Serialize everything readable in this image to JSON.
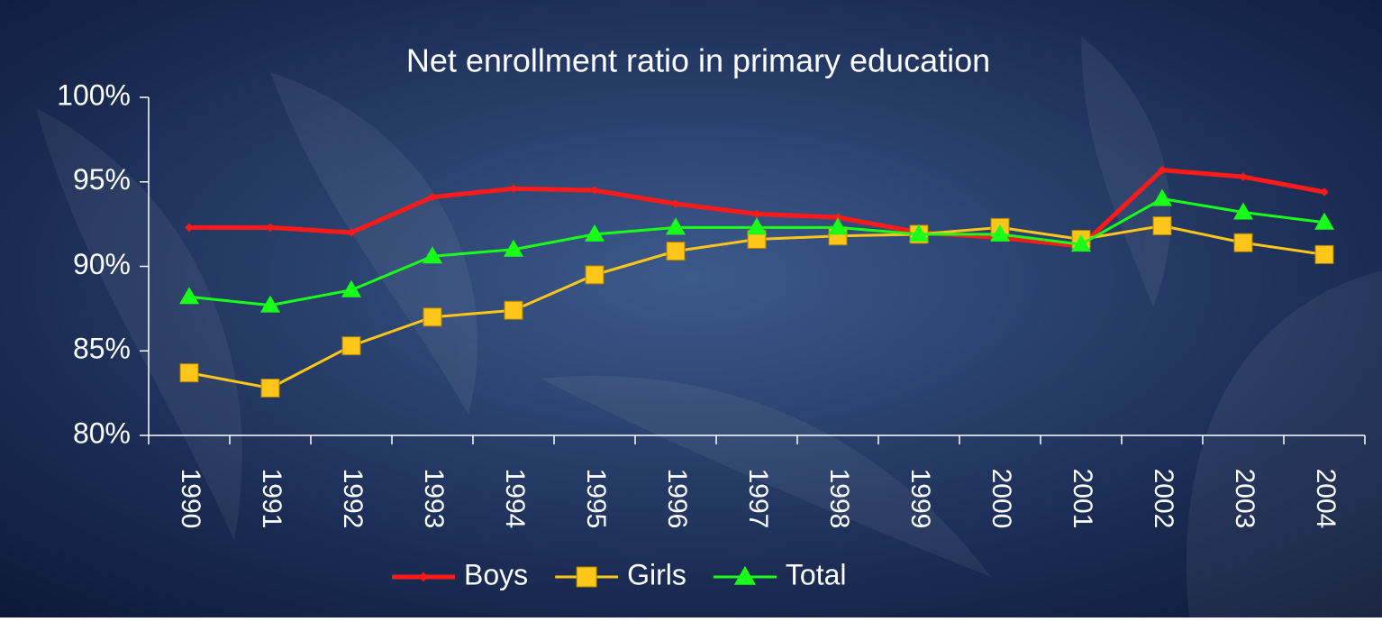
{
  "chart_data": {
    "type": "line",
    "title": "Net enrollment ratio in primary education",
    "categories": [
      "1990",
      "1991",
      "1992",
      "1993",
      "1994",
      "1995",
      "1996",
      "1997",
      "1998",
      "1999",
      "2000",
      "2001",
      "2002",
      "2003",
      "2004"
    ],
    "series": [
      {
        "name": "Boys",
        "color": "#ff1a1a",
        "marker": "diamond",
        "values": [
          92.3,
          92.3,
          92.0,
          94.1,
          94.6,
          94.5,
          93.7,
          93.1,
          92.9,
          92.0,
          91.7,
          91.2,
          95.7,
          95.3,
          94.4
        ]
      },
      {
        "name": "Girls",
        "color": "#ffc61a",
        "marker": "square",
        "values": [
          83.7,
          82.8,
          85.3,
          87.0,
          87.4,
          89.5,
          90.9,
          91.6,
          91.8,
          91.9,
          92.3,
          91.6,
          92.4,
          91.4,
          90.7
        ]
      },
      {
        "name": "Total",
        "color": "#1aff1a",
        "marker": "triangle",
        "values": [
          88.2,
          87.7,
          88.6,
          90.6,
          91.0,
          91.9,
          92.3,
          92.3,
          92.3,
          91.9,
          91.9,
          91.3,
          94.0,
          93.2,
          92.6
        ]
      }
    ],
    "ylim": [
      80,
      100
    ],
    "yticks": [
      {
        "value": 80,
        "label": "80%"
      },
      {
        "value": 85,
        "label": "85%"
      },
      {
        "value": 90,
        "label": "90%"
      },
      {
        "value": 95,
        "label": "95%"
      },
      {
        "value": 100,
        "label": "100%"
      }
    ],
    "legend": "bottom"
  }
}
